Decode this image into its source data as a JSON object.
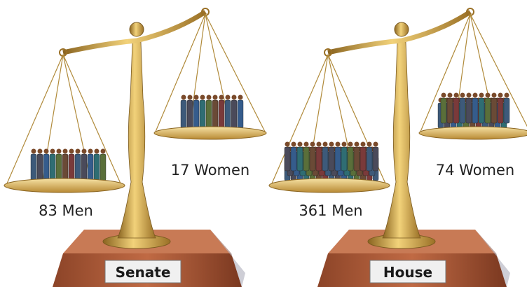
{
  "scales": [
    {
      "name": "Senate",
      "left": "83 Men",
      "right": "17 Women"
    },
    {
      "name": "House",
      "left": "361 Men",
      "right": "74 Women"
    }
  ]
}
